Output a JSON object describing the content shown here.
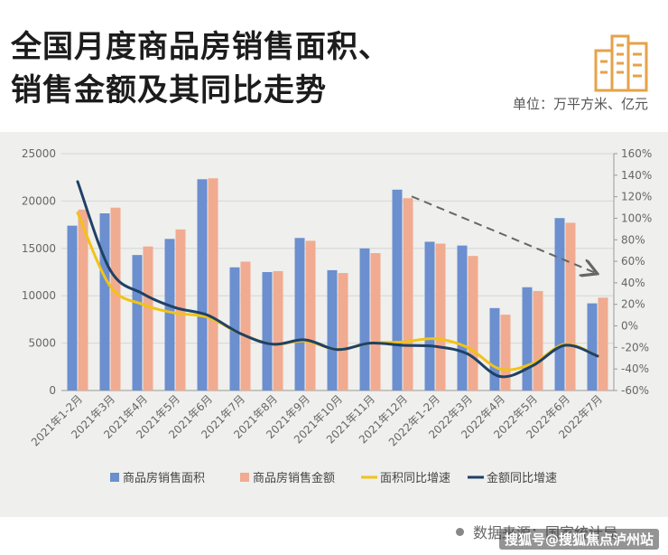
{
  "header": {
    "title_line1": "全国月度商品房销售面积、",
    "title_line2": "销售金额及其同比走势",
    "unit": "单位：万平方米、亿元"
  },
  "footer": {
    "source": "数据来源：国家统计局",
    "watermark": "搜狐号@搜狐焦点泸州站"
  },
  "colors": {
    "area_bar": "#6b8fcf",
    "amount_bar": "#f0ab90",
    "area_yoy_line": "#f2c316",
    "amount_yoy_line": "#1f4166",
    "trend_arrow": "#666666",
    "logo": "#e6a24a"
  },
  "chart_data": {
    "type": "bar",
    "categories": [
      "2021年1-2月",
      "2021年3月",
      "2021年4月",
      "2021年5月",
      "2021年6月",
      "2021年7月",
      "2021年8月",
      "2021年9月",
      "2021年10月",
      "2021年11月",
      "2021年12月",
      "2022年1-2月",
      "2022年3月",
      "2022年4月",
      "2022年5月",
      "2022年6月",
      "2022年7月"
    ],
    "series": [
      {
        "name": "商品房销售面积",
        "kind": "bar",
        "axis": "left",
        "values": [
          17400,
          18700,
          14300,
          16000,
          22300,
          13000,
          12500,
          16100,
          12700,
          15000,
          21200,
          15700,
          15300,
          8700,
          10900,
          18200,
          9200
        ]
      },
      {
        "name": "商品房销售金额",
        "kind": "bar",
        "axis": "left",
        "values": [
          19100,
          19300,
          15200,
          17000,
          22400,
          13600,
          12600,
          15800,
          12400,
          14500,
          20300,
          15500,
          14200,
          8000,
          10500,
          17700,
          9800
        ]
      },
      {
        "name": "面积同比增速",
        "kind": "line",
        "axis": "right",
        "values": [
          105,
          37,
          20,
          12,
          8,
          -7,
          -17,
          -14,
          -22,
          -16,
          -15,
          -12,
          -20,
          -40,
          -35,
          -17,
          -28
        ]
      },
      {
        "name": "金额同比增速",
        "kind": "line",
        "axis": "right",
        "values": [
          134,
          52,
          30,
          17,
          10,
          -7,
          -17,
          -13,
          -22,
          -16,
          -18,
          -19,
          -26,
          -47,
          -37,
          -18,
          -28
        ]
      }
    ],
    "left_ticks": [
      "0",
      "5000",
      "10000",
      "15000",
      "20000",
      "25000"
    ],
    "right_ticks": [
      "-60%",
      "-40%",
      "-20%",
      "0%",
      "20%",
      "40%",
      "60%",
      "80%",
      "100%",
      "120%",
      "140%",
      "160%"
    ],
    "ylim_left": [
      0,
      25000
    ],
    "ylim_right": [
      -60,
      160
    ],
    "legend_position": "bottom",
    "annotation": "dashed arrow trending downward from 2021年12月 to 2022年7月"
  }
}
